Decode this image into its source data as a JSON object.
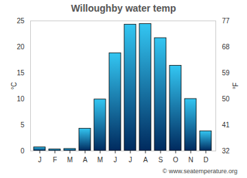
{
  "chart_data": {
    "type": "bar",
    "title": "Willoughby water temp",
    "source": "© www.seatemperature.org",
    "categories": [
      "J",
      "F",
      "M",
      "A",
      "M",
      "J",
      "J",
      "A",
      "S",
      "O",
      "N",
      "D"
    ],
    "values": [
      0.7,
      0.3,
      0.4,
      4.3,
      9.9,
      18.8,
      24.3,
      24.4,
      21.7,
      16.4,
      10.0,
      3.8
    ],
    "color": "#33c6f2",
    "y_label": "°C",
    "ylim": [
      0,
      25
    ],
    "yticks": [
      0,
      5,
      10,
      15,
      20,
      25
    ],
    "y2_label": "°F",
    "y2lim": [
      32,
      77
    ],
    "y2ticks": [
      32,
      41,
      50,
      59,
      68,
      77
    ],
    "grid": true
  }
}
